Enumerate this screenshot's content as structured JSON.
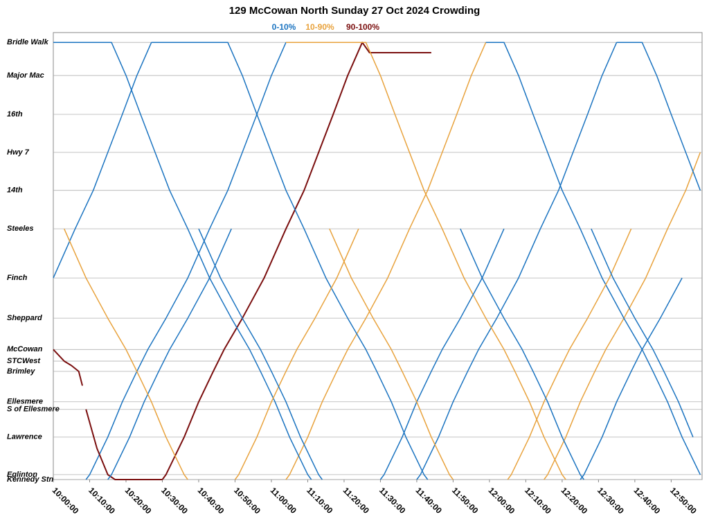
{
  "chart_data": {
    "type": "line",
    "title": "129 McCowan North Sunday 27 Oct 2024 Crowding",
    "legend": [
      {
        "name": "0-10%",
        "color": "#1a73c0"
      },
      {
        "name": "10-90%",
        "color": "#e8a23c"
      },
      {
        "name": "90-100%",
        "color": "#7a0e0e"
      }
    ],
    "xlim": [
      600,
      778.5
    ],
    "xticks": [
      {
        "value": 600,
        "label": "10:00:00"
      },
      {
        "value": 610,
        "label": "10:10:00"
      },
      {
        "value": 620,
        "label": "10:20:00"
      },
      {
        "value": 630,
        "label": "10:30:00"
      },
      {
        "value": 640,
        "label": "10:40:00"
      },
      {
        "value": 650,
        "label": "10:50:00"
      },
      {
        "value": 660,
        "label": "11:00:00"
      },
      {
        "value": 670,
        "label": "11:10:00"
      },
      {
        "value": 680,
        "label": "11:20:00"
      },
      {
        "value": 690,
        "label": "11:30:00"
      },
      {
        "value": 700,
        "label": "11:40:00"
      },
      {
        "value": 710,
        "label": "11:50:00"
      },
      {
        "value": 720,
        "label": "12:00:00"
      },
      {
        "value": 730,
        "label": "12:10:00"
      },
      {
        "value": 740,
        "label": "12:20:00"
      },
      {
        "value": 750,
        "label": "12:30:00"
      },
      {
        "value": 760,
        "label": "12:40:00"
      },
      {
        "value": 770,
        "label": "12:50:00"
      }
    ],
    "ylim": [
      0,
      100
    ],
    "yticks": [
      {
        "value": 97.8,
        "label": "Bridle Walk"
      },
      {
        "value": 90.4,
        "label": "Major Mac"
      },
      {
        "value": 81.7,
        "label": "16th"
      },
      {
        "value": 73.2,
        "label": "Hwy 7"
      },
      {
        "value": 64.7,
        "label": "14th"
      },
      {
        "value": 56.1,
        "label": "Steeles"
      },
      {
        "value": 45.1,
        "label": "Finch"
      },
      {
        "value": 36.1,
        "label": "Sheppard"
      },
      {
        "value": 29.1,
        "label": "McCowan"
      },
      {
        "value": 26.5,
        "label": "STCWest"
      },
      {
        "value": 24.2,
        "label": "Brimley"
      },
      {
        "value": 17.4,
        "label": "Ellesmere"
      },
      {
        "value": 15.7,
        "label": "S of Ellesmere"
      },
      {
        "value": 9.5,
        "label": "Lawrence"
      },
      {
        "value": 1.1,
        "label": "Eglinton"
      },
      {
        "value": 0,
        "label": "Kennedy Stn"
      }
    ],
    "grid": true,
    "series": [
      {
        "color": "#1a73c0",
        "x": [
          600,
          606,
          611,
          615,
          619,
          623,
          627
        ],
        "values": [
          45.1,
          56.1,
          64.7,
          73.2,
          81.7,
          90.4,
          97.8
        ]
      },
      {
        "color": "#1a73c0",
        "x": [
          609,
          610,
          615,
          619,
          623,
          626,
          631,
          637,
          643,
          648,
          652,
          656,
          660,
          664
        ],
        "values": [
          0,
          1.1,
          9.5,
          17.4,
          24.2,
          29.1,
          36.1,
          45.1,
          56.1,
          64.7,
          73.2,
          81.7,
          90.4,
          97.8
        ]
      },
      {
        "color": "#7a0e0e",
        "x": [
          630,
          631,
          636,
          640,
          644,
          647,
          652,
          658,
          664,
          669,
          673,
          677,
          681,
          685,
          687,
          704
        ],
        "values": [
          0,
          1.1,
          9.5,
          17.4,
          24.2,
          29.1,
          36.1,
          45.1,
          56.1,
          64.7,
          73.2,
          81.7,
          90.4,
          97.8,
          95.5,
          95.5
        ]
      },
      {
        "color": "#e8a23c",
        "x": [
          664,
          665,
          670,
          674,
          678,
          681,
          686,
          692,
          698,
          703,
          707,
          711,
          715,
          719
        ],
        "values": [
          0,
          1.1,
          9.5,
          17.4,
          24.2,
          29.1,
          36.1,
          45.1,
          56.1,
          64.7,
          73.2,
          81.7,
          90.4,
          97.8
        ]
      },
      {
        "color": "#1a73c0",
        "x": [
          700,
          701,
          706,
          710,
          714,
          717,
          722,
          728,
          734,
          739,
          743,
          747,
          751,
          755
        ],
        "values": [
          0,
          1.1,
          9.5,
          17.4,
          24.2,
          29.1,
          36.1,
          45.1,
          56.1,
          64.7,
          73.2,
          81.7,
          90.4,
          97.8
        ]
      },
      {
        "color": "#e8a23c",
        "x": [
          735,
          736,
          741,
          745,
          749,
          752,
          757,
          763,
          769,
          774,
          778
        ],
        "values": [
          0,
          1.1,
          9.5,
          17.4,
          24.2,
          29.1,
          36.1,
          45.1,
          56.1,
          64.7,
          73.2
        ]
      },
      {
        "color": "#7a0e0e",
        "x": [
          600,
          603,
          605,
          607,
          608
        ],
        "values": [
          29.1,
          26.5,
          25.5,
          24.2,
          21.0
        ]
      },
      {
        "color": "#7a0e0e",
        "x": [
          609,
          612,
          615,
          617,
          630
        ],
        "values": [
          15.7,
          7,
          1.1,
          0,
          0
        ]
      },
      {
        "color": "#1a73c0",
        "x": [
          600,
          616,
          620,
          624,
          628,
          632,
          637,
          643,
          649,
          654,
          657,
          661,
          665,
          670,
          671
        ],
        "values": [
          97.8,
          97.8,
          90.4,
          81.7,
          73.2,
          64.7,
          56.1,
          45.1,
          36.1,
          29.1,
          24.2,
          17.4,
          9.5,
          1.1,
          0
        ]
      },
      {
        "color": "#1a73c0",
        "x": [
          627,
          648,
          652,
          656,
          660,
          664,
          669,
          675,
          681,
          686,
          689,
          693,
          697,
          702,
          703
        ],
        "values": [
          97.8,
          97.8,
          90.4,
          81.7,
          73.2,
          64.7,
          56.1,
          45.1,
          36.1,
          29.1,
          24.2,
          17.4,
          9.5,
          1.1,
          0
        ]
      },
      {
        "color": "#e8a23c",
        "x": [
          664,
          686,
          690,
          694,
          698,
          702,
          707,
          713,
          719,
          724,
          727,
          731,
          735,
          740,
          741
        ],
        "values": [
          97.8,
          97.8,
          90.4,
          81.7,
          73.2,
          64.7,
          56.1,
          45.1,
          36.1,
          29.1,
          24.2,
          17.4,
          9.5,
          1.1,
          0
        ]
      },
      {
        "color": "#1a73c0",
        "x": [
          719,
          724,
          728,
          732,
          736,
          740,
          745,
          751,
          757,
          762,
          765,
          769,
          773,
          778
        ],
        "values": [
          97.8,
          97.8,
          90.4,
          81.7,
          73.2,
          64.7,
          56.1,
          45.1,
          36.1,
          29.1,
          24.2,
          17.4,
          9.5,
          1.1
        ]
      },
      {
        "color": "#1a73c0",
        "x": [
          755,
          762,
          766,
          770,
          774,
          778
        ],
        "values": [
          97.8,
          97.8,
          90.4,
          81.7,
          73.2,
          64.7
        ]
      },
      {
        "color": "#1a73c0",
        "x": [
          615,
          616,
          621,
          625,
          629,
          632,
          637,
          643,
          649
        ],
        "values": [
          0,
          1.1,
          9.5,
          17.4,
          24.2,
          29.1,
          36.1,
          45.1,
          56.1
        ]
      },
      {
        "color": "#e8a23c",
        "x": [
          650,
          651,
          656,
          660,
          664,
          667,
          672,
          678,
          684
        ],
        "values": [
          0,
          1.1,
          9.5,
          17.4,
          24.2,
          29.1,
          36.1,
          45.1,
          56.1
        ]
      },
      {
        "color": "#1a73c0",
        "x": [
          690,
          691,
          696,
          700,
          704,
          707,
          712,
          718,
          724
        ],
        "values": [
          0,
          1.1,
          9.5,
          17.4,
          24.2,
          29.1,
          36.1,
          45.1,
          56.1
        ]
      },
      {
        "color": "#e8a23c",
        "x": [
          725,
          726,
          731,
          735,
          739,
          742,
          747,
          753,
          759
        ],
        "values": [
          0,
          1.1,
          9.5,
          17.4,
          24.2,
          29.1,
          36.1,
          45.1,
          56.1
        ]
      },
      {
        "color": "#1a73c0",
        "x": [
          745,
          746,
          751,
          755,
          759,
          762,
          767,
          773
        ],
        "values": [
          0,
          1.1,
          9.5,
          17.4,
          24.2,
          29.1,
          36.1,
          45.1
        ]
      },
      {
        "color": "#e8a23c",
        "x": [
          603,
          609,
          615,
          620,
          623,
          627,
          631,
          636,
          637
        ],
        "values": [
          56.1,
          45.1,
          36.1,
          29.1,
          24.2,
          17.4,
          9.5,
          1.1,
          0
        ]
      },
      {
        "color": "#1a73c0",
        "x": [
          640,
          646,
          652,
          657,
          660,
          664,
          668,
          673,
          674
        ],
        "values": [
          56.1,
          45.1,
          36.1,
          29.1,
          24.2,
          17.4,
          9.5,
          1.1,
          0
        ]
      },
      {
        "color": "#e8a23c",
        "x": [
          676,
          682,
          688,
          693,
          696,
          700,
          704,
          709,
          710
        ],
        "values": [
          56.1,
          45.1,
          36.1,
          29.1,
          24.2,
          17.4,
          9.5,
          1.1,
          0
        ]
      },
      {
        "color": "#1a73c0",
        "x": [
          712,
          718,
          724,
          729,
          732,
          736,
          740,
          745,
          746
        ],
        "values": [
          56.1,
          45.1,
          36.1,
          29.1,
          24.2,
          17.4,
          9.5,
          1.1,
          0
        ]
      },
      {
        "color": "#1a73c0",
        "x": [
          748,
          754,
          760,
          765,
          768,
          772,
          776
        ],
        "values": [
          56.1,
          45.1,
          36.1,
          29.1,
          24.2,
          17.4,
          9.5
        ]
      }
    ]
  }
}
